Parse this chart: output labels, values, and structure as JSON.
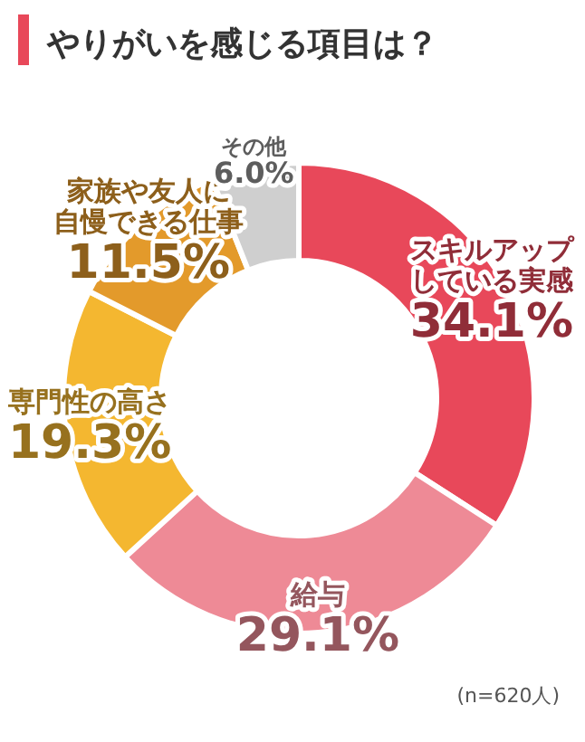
{
  "chart_data": {
    "type": "donut",
    "title": "やりがいを感じる項目は？",
    "categories": [
      "スキルアップしている実感",
      "給与",
      "専門性の高さ",
      "家族や友人に自慢できる仕事",
      "その他"
    ],
    "values": [
      34.1,
      29.1,
      19.3,
      11.5,
      6.0
    ],
    "colors": [
      "#e8485a",
      "#ee8a96",
      "#f4b730",
      "#e39a2b",
      "#cfcfcf"
    ],
    "value_labels": [
      "34.1%",
      "29.1%",
      "19.3%",
      "11.5%",
      "6.0%"
    ],
    "annotations": [
      "(n=620人)"
    ]
  }
}
